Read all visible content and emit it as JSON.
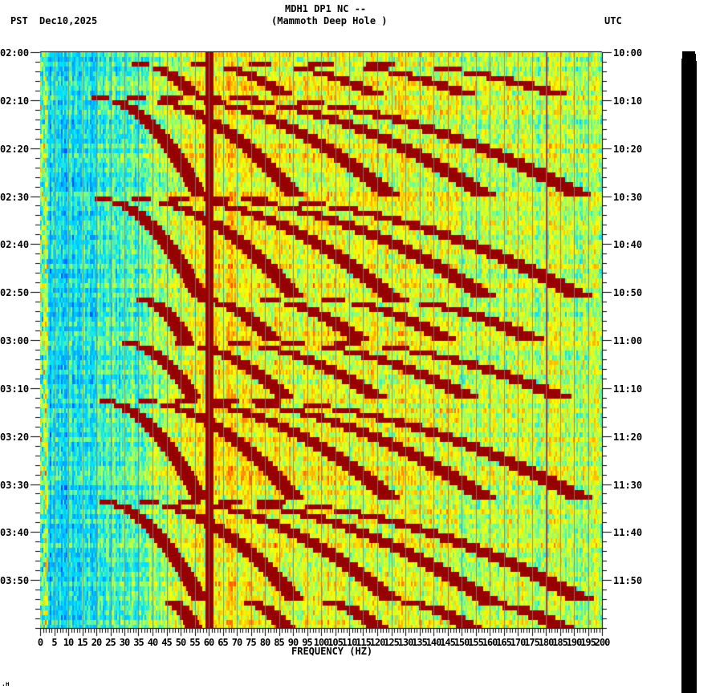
{
  "header": {
    "title": "MDH1 DP1 NC --",
    "subtitle": "(Mammoth Deep Hole )",
    "left_timezone": "PST",
    "date": "Dec10,2025",
    "right_timezone": "UTC"
  },
  "footer": {
    "mark": ".н"
  },
  "chart_data": {
    "type": "heatmap",
    "title": "MDH1 DP1 NC -- (Mammoth Deep Hole )",
    "xlabel": "FREQUENCY (HZ)",
    "ylabel_left": "PST",
    "ylabel_right": "UTC",
    "xlim": [
      0,
      200
    ],
    "x_ticks": [
      0,
      5,
      10,
      15,
      20,
      25,
      30,
      35,
      40,
      45,
      50,
      55,
      60,
      65,
      70,
      75,
      80,
      85,
      90,
      95,
      100,
      105,
      110,
      115,
      120,
      125,
      130,
      135,
      140,
      145,
      150,
      155,
      160,
      165,
      170,
      175,
      180,
      185,
      190,
      195,
      200
    ],
    "x_tick_labels": [
      "0",
      "5",
      "10",
      "15",
      "20",
      "25",
      "30",
      "35",
      "40",
      "45",
      "50",
      "55",
      "60",
      "65",
      "70",
      "75",
      "80",
      "85",
      "90",
      "95",
      "100",
      "105",
      "110",
      "115",
      "120",
      "125",
      "130",
      "135",
      "140",
      "145",
      "150",
      "155",
      "160",
      "165",
      "170",
      "175",
      "180",
      "185",
      "190",
      "195",
      "200"
    ],
    "y_ticks_left": [
      "02:00",
      "02:10",
      "02:20",
      "02:30",
      "02:40",
      "02:50",
      "03:00",
      "03:10",
      "03:20",
      "03:30",
      "03:40",
      "03:50"
    ],
    "y_ticks_right": [
      "10:00",
      "10:10",
      "10:20",
      "10:30",
      "10:40",
      "10:50",
      "11:00",
      "11:10",
      "11:20",
      "11:30",
      "11:40",
      "11:50"
    ],
    "time_span_minutes": 120,
    "minor_tick_minutes": 2,
    "grid": true,
    "grid_step_hz": 5,
    "colormap": [
      "#0000ff",
      "#0090ff",
      "#00e0ff",
      "#80ff80",
      "#ffff00",
      "#ff9000",
      "#ff0000",
      "#800000"
    ],
    "persistent_lines_hz": [
      60,
      180
    ],
    "gliding_tremor_events": [
      {
        "start_min": 2,
        "end_min": 9,
        "f0_start": 35,
        "f0_end": 55
      },
      {
        "start_min": 9,
        "end_min": 30,
        "f0_start": 20,
        "f0_end": 57
      },
      {
        "start_min": 30,
        "end_min": 51,
        "f0_start": 20,
        "f0_end": 57
      },
      {
        "start_min": 51,
        "end_min": 60,
        "f0_start": 35,
        "f0_end": 52
      },
      {
        "start_min": 60,
        "end_min": 72,
        "f0_start": 29,
        "f0_end": 55
      },
      {
        "start_min": 72,
        "end_min": 93,
        "f0_start": 20,
        "f0_end": 57
      },
      {
        "start_min": 93,
        "end_min": 114,
        "f0_start": 20,
        "f0_end": 57
      },
      {
        "start_min": 114,
        "end_min": 120,
        "f0_start": 45,
        "f0_end": 55
      }
    ],
    "harmonic_ratios": [
      1,
      1.6,
      2.2,
      2.8,
      3.4
    ]
  }
}
